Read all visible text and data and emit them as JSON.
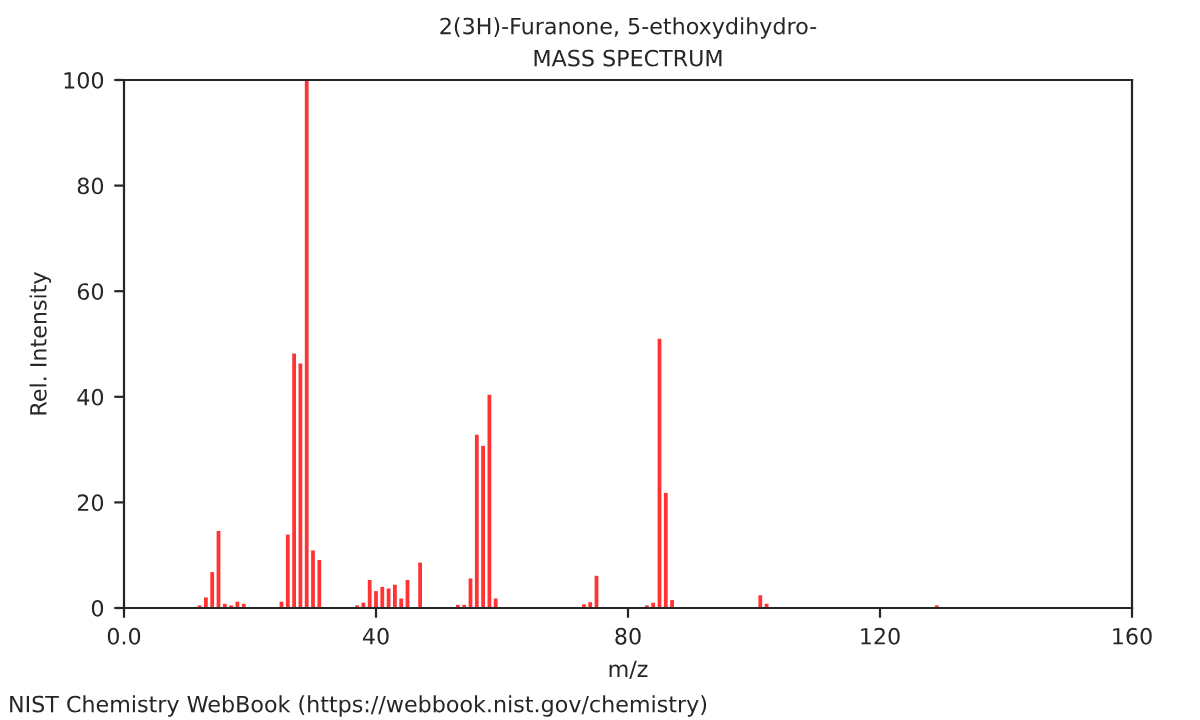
{
  "chart_data": {
    "type": "bar",
    "title": "2(3H)-Furanone, 5-ethoxydihydro-",
    "subtitle": "MASS SPECTRUM",
    "xlabel": "m/z",
    "ylabel": "Rel. Intensity",
    "x": [
      12,
      13,
      14,
      15,
      16,
      17,
      18,
      19,
      25,
      26,
      27,
      28,
      29,
      30,
      31,
      37,
      38,
      39,
      40,
      41,
      42,
      43,
      44,
      45,
      47,
      53,
      54,
      55,
      56,
      57,
      58,
      59,
      73,
      74,
      75,
      83,
      84,
      85,
      86,
      87,
      101,
      102,
      129
    ],
    "values": [
      0.5,
      2,
      6.8,
      14.6,
      0.8,
      0.5,
      1.2,
      0.8,
      1.2,
      13.9,
      48.2,
      46.3,
      100,
      10.9,
      9.1,
      0.5,
      1,
      5.3,
      3.2,
      4,
      3.7,
      4.4,
      1.8,
      5.3,
      8.6,
      0.6,
      0.6,
      5.6,
      32.8,
      30.7,
      40.4,
      1.8,
      0.7,
      1.1,
      6.1,
      0.5,
      1,
      51,
      21.8,
      1.5,
      2.4,
      0.8,
      0.5
    ],
    "color": "#ff0000",
    "xlim": [
      0,
      160
    ],
    "xticks": [
      {
        "value": 0,
        "label": "0.0"
      },
      40,
      80,
      120,
      160
    ],
    "ylim": [
      0,
      100
    ],
    "yticks": [
      0,
      20,
      40,
      60,
      80,
      100
    ],
    "grid": false,
    "legend": false,
    "annotations": [
      "NIST Chemistry WebBook (https://webbook.nist.gov/chemistry)"
    ]
  }
}
